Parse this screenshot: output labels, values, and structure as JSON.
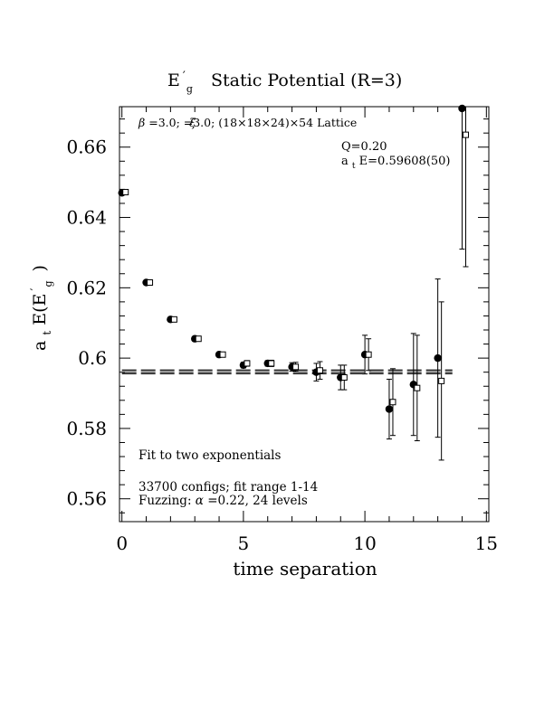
{
  "chart_data": {
    "type": "scatter",
    "title": {
      "main": "E",
      "sub": "g",
      "prime": "′",
      "rest": "Static Potential (R=3)"
    },
    "xlabel": "time separation",
    "ylabel": {
      "a": "a",
      "sub_t": "t",
      "rest": "E(E",
      "prime": "′",
      "sub_g": "g",
      "close": ")"
    },
    "xlim": [
      -0.1,
      15.1
    ],
    "ylim": [
      0.5535,
      0.6715
    ],
    "xticks": [
      0,
      5,
      10,
      15
    ],
    "xticklabels": [
      "0",
      "5",
      "10",
      "15"
    ],
    "yticks": [
      0.56,
      0.58,
      0.6,
      0.62,
      0.64,
      0.66
    ],
    "yticklabels": [
      "0.56",
      "0.58",
      "0.6",
      "0.62",
      "0.64",
      "0.66"
    ],
    "annotations": {
      "lattice_beta": "β",
      "lattice_xi": "ξ",
      "lattice_text": "=3.0;  =3.0; (18×18×24)×54 Lattice",
      "q": "Q=0.20",
      "energy_a": "a",
      "energy_t": "t",
      "energy_rest": "E=0.59608(50)",
      "fit": "Fit to two exponentials",
      "configs": "33700 configs; fit range 1-14",
      "fuzz_label": "Fuzzing: ",
      "fuzz_alpha": "α",
      "fuzz_rest": "=0.22, 24 levels"
    },
    "fit": {
      "value": 0.59608,
      "error": 0.0005,
      "x_range": [
        0,
        13.6
      ]
    },
    "series": [
      {
        "marker": "filled-circle",
        "x": [
          0,
          1,
          2,
          3,
          4,
          5,
          6,
          7,
          8,
          9,
          10,
          11,
          12,
          13,
          14
        ],
        "y": [
          0.647,
          0.6215,
          0.611,
          0.6055,
          0.601,
          0.598,
          0.5985,
          0.5975,
          0.596,
          0.5945,
          0.601,
          0.5855,
          0.5925,
          0.6,
          0.671
        ],
        "err": [
          0.0003,
          0.0004,
          0.0005,
          0.0006,
          0.0007,
          0.0008,
          0.0008,
          0.0012,
          0.0025,
          0.0035,
          0.0055,
          0.0085,
          0.0145,
          0.0225,
          0.04
        ]
      },
      {
        "marker": "open-square",
        "x": [
          0.15,
          1.15,
          2.15,
          3.15,
          4.15,
          5.15,
          6.15,
          7.15,
          8.15,
          9.15,
          10.15,
          11.15,
          12.15,
          13.15,
          14.15
        ],
        "y": [
          0.6472,
          0.6215,
          0.611,
          0.6055,
          0.601,
          0.5985,
          0.5985,
          0.5975,
          0.5965,
          0.5945,
          0.601,
          0.5875,
          0.5915,
          0.5935,
          0.6635
        ],
        "err": [
          0.0003,
          0.0004,
          0.0005,
          0.0006,
          0.0007,
          0.0008,
          0.0009,
          0.0013,
          0.0025,
          0.0035,
          0.0045,
          0.0095,
          0.015,
          0.0225,
          0.0375
        ]
      }
    ]
  }
}
